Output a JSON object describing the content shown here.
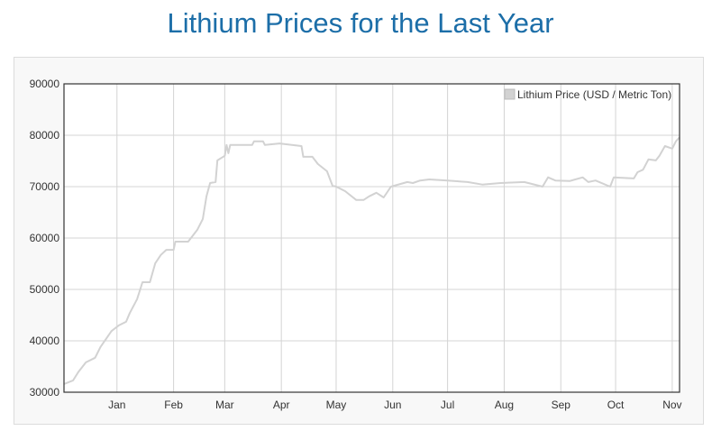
{
  "chart_data": {
    "type": "line",
    "title": "Lithium Prices for the Last Year",
    "xlabel": "",
    "ylabel": "",
    "grid": true,
    "legend_placement": "top-right",
    "xlim": [
      "Dec 3",
      "Nov 5"
    ],
    "ylim": [
      30000,
      90000
    ],
    "y_ticks": [
      "30000",
      "40000",
      "50000",
      "60000",
      "70000",
      "80000",
      "90000"
    ],
    "x_ticks": [
      {
        "label": "Jan",
        "date": "Jan 1"
      },
      {
        "label": "Feb",
        "date": "Feb 1"
      },
      {
        "label": "Mar",
        "date": "Mar 1"
      },
      {
        "label": "Apr",
        "date": "Apr 1"
      },
      {
        "label": "May",
        "date": "May 1"
      },
      {
        "label": "Jun",
        "date": "Jun 1"
      },
      {
        "label": "Jul",
        "date": "Jul 1"
      },
      {
        "label": "Aug",
        "date": "Aug 1"
      },
      {
        "label": "Sep",
        "date": "Sep 1"
      },
      {
        "label": "Oct",
        "date": "Oct 1"
      },
      {
        "label": "Nov",
        "date": "Nov 1"
      }
    ],
    "series": [
      {
        "name": "Lithium Price (USD / Metric Ton)",
        "color": "#d2d2d2",
        "x": [
          "Dec 3",
          "Dec 8",
          "Dec 11",
          "Dec 15",
          "Dec 20",
          "Dec 23",
          "Dec 29",
          "Jan 2",
          "Jan 6",
          "Jan 8",
          "Jan 12",
          "Jan 15",
          "Jan 19",
          "Jan 22",
          "Jan 25",
          "Jan 28",
          "Feb 1",
          "Feb 2",
          "Feb 9",
          "Feb 14",
          "Feb 17",
          "Feb 19",
          "Feb 21",
          "Feb 24",
          "Feb 25",
          "Mar 1",
          "Mar 2",
          "Mar 3",
          "Mar 4",
          "Mar 16",
          "Mar 17",
          "Mar 22",
          "Mar 23",
          "Mar 31",
          "Apr 12",
          "Apr 13",
          "Apr 18",
          "Apr 21",
          "Apr 26",
          "Apr 29",
          "May 1",
          "May 6",
          "May 12",
          "May 16",
          "May 19",
          "May 23",
          "May 27",
          "May 31",
          "Jun 9",
          "Jun 12",
          "Jun 16",
          "Jun 21",
          "Jul 1",
          "Jul 12",
          "Jul 20",
          "Jul 30",
          "Aug 12",
          "Aug 22",
          "Aug 25",
          "Aug 29",
          "Sep 6",
          "Sep 13",
          "Sep 16",
          "Sep 20",
          "Sep 28",
          "Sep 30",
          "Oct 11",
          "Oct 13",
          "Oct 16",
          "Oct 19",
          "Oct 23",
          "Oct 25",
          "Oct 28",
          "Nov 1",
          "Nov 3",
          "Nov 5"
        ],
        "values": [
          31600,
          32300,
          34000,
          35800,
          36700,
          38800,
          41900,
          43000,
          43700,
          45400,
          48100,
          51400,
          51400,
          55100,
          56700,
          57700,
          57700,
          59300,
          59300,
          61600,
          63700,
          68100,
          70700,
          70900,
          75100,
          76000,
          78100,
          76500,
          78100,
          78100,
          78800,
          78800,
          78100,
          78400,
          77900,
          75800,
          75800,
          74400,
          73000,
          70200,
          70000,
          69100,
          67400,
          67400,
          68100,
          68800,
          67900,
          70000,
          70900,
          70700,
          71200,
          71400,
          71200,
          70900,
          70400,
          70700,
          70900,
          70000,
          71800,
          71200,
          71100,
          71800,
          70900,
          71200,
          70000,
          71800,
          71600,
          72800,
          73300,
          75300,
          75100,
          76000,
          77900,
          77400,
          78800,
          79600
        ]
      }
    ]
  }
}
